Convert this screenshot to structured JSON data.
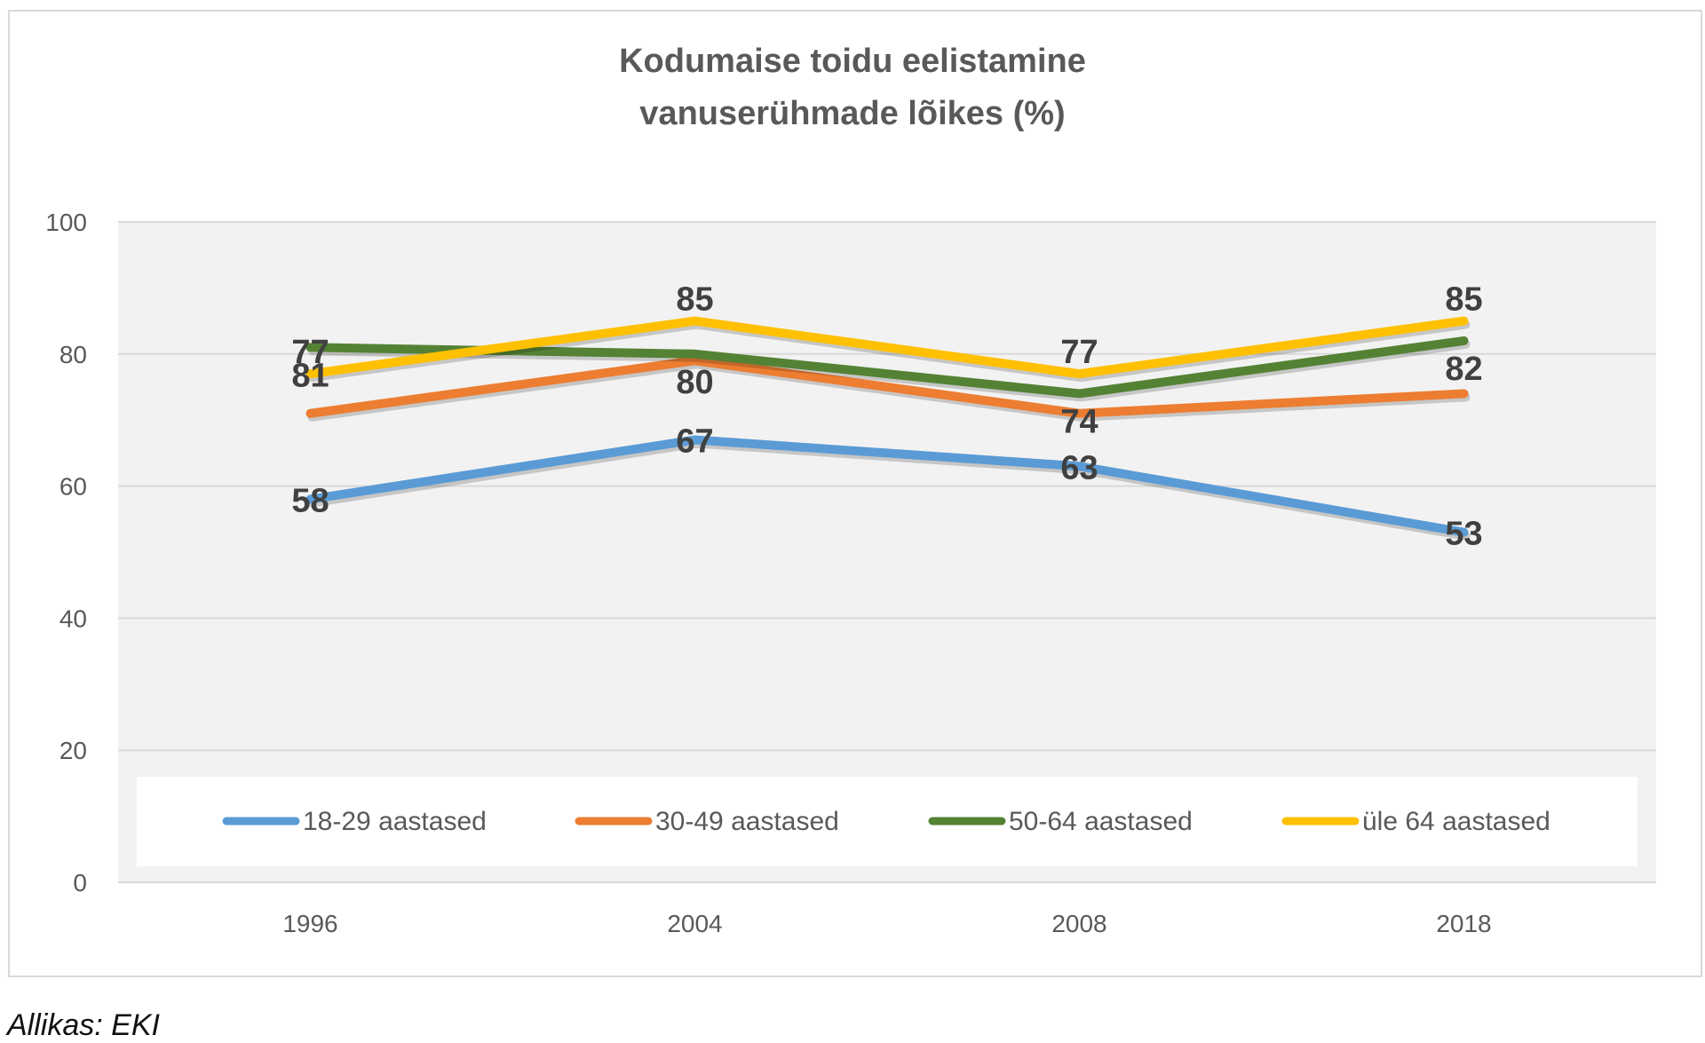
{
  "chart_data": {
    "type": "line",
    "title_line1": "Kodumaise toidu eelistamine",
    "title_line2": "vanuserühmade lõikes (%)",
    "categories": [
      "1996",
      "2004",
      "2008",
      "2018"
    ],
    "ylim": [
      0,
      100
    ],
    "yticks": [
      "0",
      "20",
      "40",
      "60",
      "80",
      "100"
    ],
    "grid": true,
    "legend_position": "bottom-inside",
    "series": [
      {
        "name": "18-29 aastased",
        "color": "#5b9bd5",
        "values": [
          58,
          67,
          63,
          53
        ],
        "labels": [
          "58",
          "67",
          "63",
          "53"
        ]
      },
      {
        "name": "30-49 aastased",
        "color": "#ed7d31",
        "values": [
          71,
          79,
          71,
          74
        ],
        "labels": [
          "",
          "",
          "",
          ""
        ]
      },
      {
        "name": "50-64 aastased",
        "color": "#548235",
        "values": [
          81,
          80,
          74,
          82
        ],
        "labels": [
          "81",
          "80",
          "74",
          "82"
        ]
      },
      {
        "name": "üle 64 aastased",
        "color": "#ffc000",
        "values": [
          77,
          85,
          77,
          85
        ],
        "labels": [
          "77",
          "85",
          "77",
          "85"
        ]
      }
    ]
  },
  "source": "Allikas: EKI"
}
